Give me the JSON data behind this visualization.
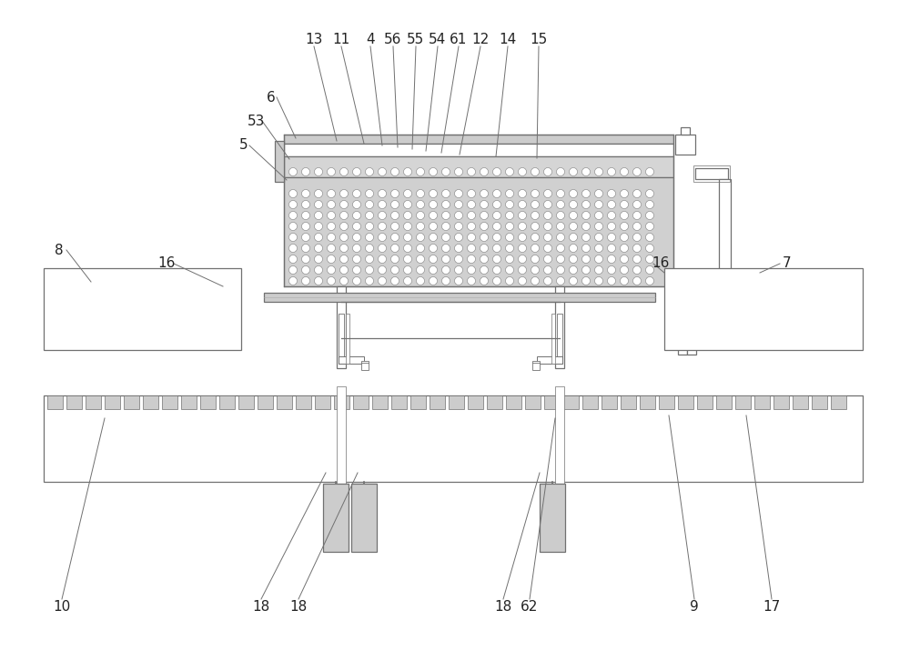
{
  "line_color": "#707070",
  "bg_color": "#ffffff",
  "fill_light": "#cccccc",
  "fill_medium": "#aaaaaa",
  "label_color": "#222222",
  "figsize": [
    10.0,
    7.15
  ],
  "dpi": 100,
  "top_labels": [
    [
      "13",
      345,
      672,
      370,
      560
    ],
    [
      "11",
      375,
      672,
      400,
      557
    ],
    [
      "4",
      407,
      672,
      420,
      555
    ],
    [
      "56",
      432,
      672,
      437,
      553
    ],
    [
      "55",
      457,
      672,
      453,
      551
    ],
    [
      "54",
      481,
      672,
      468,
      549
    ],
    [
      "61",
      504,
      672,
      485,
      547
    ],
    [
      "12",
      528,
      672,
      505,
      545
    ],
    [
      "14",
      558,
      672,
      545,
      543
    ],
    [
      "15",
      592,
      672,
      590,
      541
    ]
  ],
  "left_labels": [
    [
      "6",
      298,
      608,
      325,
      563
    ],
    [
      "53",
      282,
      582,
      318,
      540
    ],
    [
      "5",
      268,
      555,
      315,
      517
    ]
  ],
  "side_labels": [
    [
      "8",
      65,
      440,
      100,
      405
    ],
    [
      "16",
      183,
      425,
      245,
      400
    ],
    [
      "16",
      726,
      425,
      730,
      415
    ],
    [
      "7",
      865,
      425,
      835,
      415
    ]
  ],
  "bot_labels": [
    [
      "10",
      68,
      48,
      115,
      255
    ],
    [
      "18",
      287,
      48,
      358,
      195
    ],
    [
      "18",
      328,
      48,
      393,
      195
    ],
    [
      "18",
      553,
      48,
      593,
      195
    ],
    [
      "62",
      582,
      48,
      610,
      255
    ],
    [
      "9",
      763,
      48,
      735,
      258
    ],
    [
      "17",
      848,
      48,
      820,
      258
    ]
  ]
}
